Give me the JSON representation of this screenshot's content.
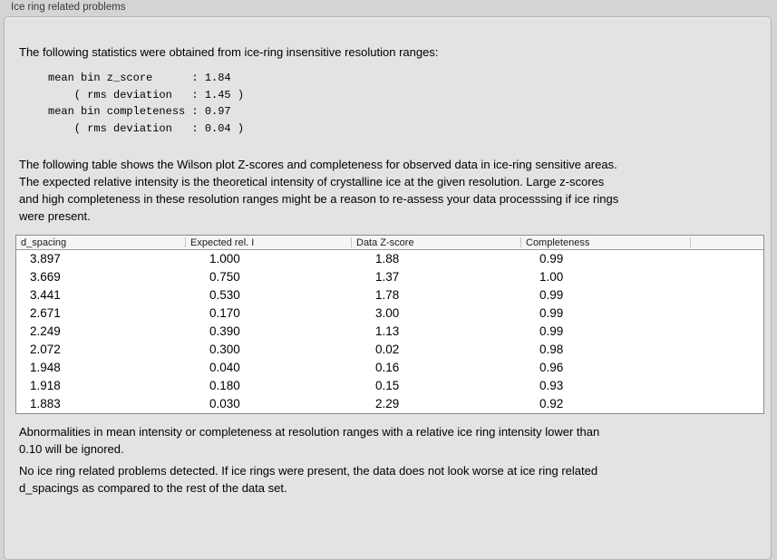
{
  "panel": {
    "title": "Ice ring related problems"
  },
  "intro": "The following statistics were obtained from ice-ring insensitive resolution ranges:",
  "stats_block": {
    "lines": [
      "mean bin z_score      : 1.84",
      "    ( rms deviation   : 1.45 )",
      "mean bin completeness : 0.97",
      "    ( rms deviation   : 0.04 )"
    ]
  },
  "description": {
    "lines": [
      "The following table shows the Wilson plot Z-scores and completeness for observed data in ice-ring sensitive areas.",
      "The expected relative intensity is the theoretical intensity of crystalline ice at the given resolution. Large z-scores",
      "and high completeness in these resolution ranges might be a reason to re-assess your data processsing if ice rings",
      "were present."
    ]
  },
  "table": {
    "columns": [
      "d_spacing",
      "Expected rel. I",
      "Data Z-score",
      "Completeness",
      ""
    ],
    "rows": [
      [
        "3.897",
        "1.000",
        "1.88",
        "0.99"
      ],
      [
        "3.669",
        "0.750",
        "1.37",
        "1.00"
      ],
      [
        "3.441",
        "0.530",
        "1.78",
        "0.99"
      ],
      [
        "2.671",
        "0.170",
        "3.00",
        "0.99"
      ],
      [
        "2.249",
        "0.390",
        "1.13",
        "0.99"
      ],
      [
        "2.072",
        "0.300",
        "0.02",
        "0.98"
      ],
      [
        "1.948",
        "0.040",
        "0.16",
        "0.96"
      ],
      [
        "1.918",
        "0.180",
        "0.15",
        "0.93"
      ],
      [
        "1.883",
        "0.030",
        "2.29",
        "0.92"
      ]
    ]
  },
  "note_ignore": {
    "lines": [
      "Abnormalities in mean intensity or completeness at resolution ranges with a relative ice ring intensity lower than",
      "0.10 will be ignored."
    ]
  },
  "conclusion": {
    "lines": [
      "No ice ring related problems detected. If ice rings were present, the data does not look worse at ice ring related",
      "d_spacings as compared to the rest of the data set."
    ]
  },
  "colors": {
    "page_background": "#d4d4d4",
    "panel_background": "#e3e3e3",
    "panel_border": "#b4b4b4",
    "table_background": "#ffffff",
    "table_border": "#8c8c8c",
    "table_header_background": "#f5f5f5"
  }
}
